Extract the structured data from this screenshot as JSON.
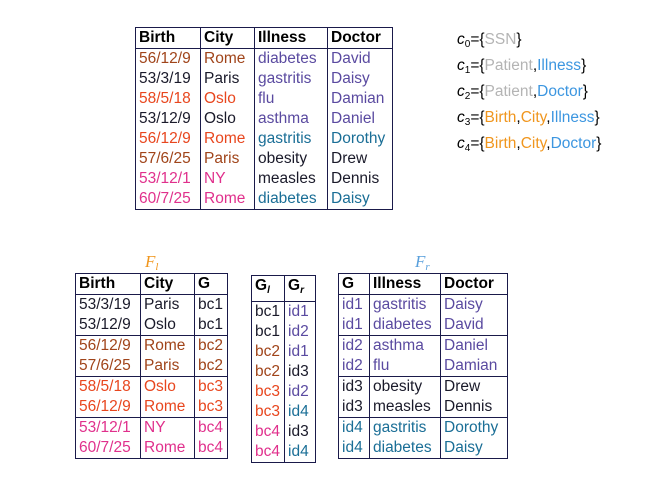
{
  "colors": {
    "brown": "#a0441a",
    "dark": "#1a1a2a",
    "red": "#e8461e",
    "pink": "#e0308c",
    "purple": "#5a4aa0",
    "teal": "#1a6e96",
    "orange": "#f0961e",
    "blue": "#3c96e0",
    "gray": "#b4b4b4",
    "fl": "#f0961e",
    "fr": "#5aa0dc"
  },
  "main_table": {
    "headers": [
      "Birth",
      "City",
      "Illness",
      "Doctor"
    ],
    "rows": [
      {
        "birth": "56/12/9",
        "city": "Rome",
        "illness": "diabetes",
        "doctor": "David",
        "c1": "brown",
        "c2": "purple"
      },
      {
        "birth": "53/3/19",
        "city": "Paris",
        "illness": "gastritis",
        "doctor": "Daisy",
        "c1": "dark",
        "c2": "purple"
      },
      {
        "birth": "58/5/18",
        "city": "Oslo",
        "illness": "flu",
        "doctor": "Damian",
        "c1": "red",
        "c2": "purple"
      },
      {
        "birth": "53/12/9",
        "city": "Oslo",
        "illness": "asthma",
        "doctor": "Daniel",
        "c1": "dark",
        "c2": "purple"
      },
      {
        "birth": "56/12/9",
        "city": "Rome",
        "illness": "gastritis",
        "doctor": "Dorothy",
        "c1": "red",
        "c2": "teal"
      },
      {
        "birth": "57/6/25",
        "city": "Paris",
        "illness": "obesity",
        "doctor": "Drew",
        "c1": "brown",
        "c2": "dark"
      },
      {
        "birth": "53/12/1",
        "city": "NY",
        "illness": "measles",
        "doctor": "Dennis",
        "c1": "pink",
        "c2": "dark"
      },
      {
        "birth": "60/7/25",
        "city": "Rome",
        "illness": "diabetes",
        "doctor": "Daisy",
        "c1": "pink",
        "c2": "teal"
      }
    ]
  },
  "constraints": [
    {
      "var": "c",
      "sub": "0",
      "items": [
        {
          "text": "SSN",
          "color": "gray"
        }
      ]
    },
    {
      "var": "c",
      "sub": "1",
      "items": [
        {
          "text": "Patient",
          "color": "gray"
        },
        {
          "text": "Illness",
          "color": "blue"
        }
      ]
    },
    {
      "var": "c",
      "sub": "2",
      "items": [
        {
          "text": "Patient",
          "color": "gray"
        },
        {
          "text": "Doctor",
          "color": "blue"
        }
      ]
    },
    {
      "var": "c",
      "sub": "3",
      "items": [
        {
          "text": "Birth",
          "color": "orange"
        },
        {
          "text": "City",
          "color": "orange"
        },
        {
          "text": "Illness",
          "color": "blue"
        }
      ]
    },
    {
      "var": "c",
      "sub": "4",
      "items": [
        {
          "text": "Birth",
          "color": "orange"
        },
        {
          "text": "City",
          "color": "orange"
        },
        {
          "text": "Doctor",
          "color": "blue"
        }
      ]
    }
  ],
  "fl": {
    "title_main": "F",
    "title_sub": "l",
    "headers": [
      "Birth",
      "City",
      "G"
    ],
    "rows": [
      {
        "birth": "53/3/19",
        "city": "Paris",
        "g": "bc1",
        "color": "dark",
        "grp": false
      },
      {
        "birth": "53/12/9",
        "city": "Oslo",
        "g": "bc1",
        "color": "dark",
        "grp": false
      },
      {
        "birth": "56/12/9",
        "city": "Rome",
        "g": "bc2",
        "color": "brown",
        "grp": true
      },
      {
        "birth": "57/6/25",
        "city": "Paris",
        "g": "bc2",
        "color": "brown",
        "grp": false
      },
      {
        "birth": "58/5/18",
        "city": "Oslo",
        "g": "bc3",
        "color": "red",
        "grp": true
      },
      {
        "birth": "56/12/9",
        "city": "Rome",
        "g": "bc3",
        "color": "red",
        "grp": false
      },
      {
        "birth": "53/12/1",
        "city": "NY",
        "g": "bc4",
        "color": "pink",
        "grp": true
      },
      {
        "birth": "60/7/25",
        "city": "Rome",
        "g": "bc4",
        "color": "pink",
        "grp": false
      }
    ]
  },
  "g": {
    "headers": [
      {
        "main": "G",
        "sub": "l"
      },
      {
        "main": "G",
        "sub": "r"
      }
    ],
    "rows": [
      {
        "gl": "bc1",
        "gr": "id1",
        "c1": "dark",
        "c2": "purple"
      },
      {
        "gl": "bc1",
        "gr": "id2",
        "c1": "dark",
        "c2": "purple"
      },
      {
        "gl": "bc2",
        "gr": "id1",
        "c1": "brown",
        "c2": "purple"
      },
      {
        "gl": "bc2",
        "gr": "id3",
        "c1": "brown",
        "c2": "dark"
      },
      {
        "gl": "bc3",
        "gr": "id2",
        "c1": "red",
        "c2": "purple"
      },
      {
        "gl": "bc3",
        "gr": "id4",
        "c1": "red",
        "c2": "teal"
      },
      {
        "gl": "bc4",
        "gr": "id3",
        "c1": "pink",
        "c2": "dark"
      },
      {
        "gl": "bc4",
        "gr": "id4",
        "c1": "pink",
        "c2": "teal"
      }
    ]
  },
  "fr": {
    "title_main": "F",
    "title_sub": "r",
    "headers": [
      "G",
      "Illness",
      "Doctor"
    ],
    "rows": [
      {
        "g": "id1",
        "illness": "gastritis",
        "doctor": "Daisy",
        "color": "purple",
        "grp": false
      },
      {
        "g": "id1",
        "illness": "diabetes",
        "doctor": "David",
        "color": "purple",
        "grp": false
      },
      {
        "g": "id2",
        "illness": "asthma",
        "doctor": "Daniel",
        "color": "purple",
        "grp": true
      },
      {
        "g": "id2",
        "illness": "flu",
        "doctor": "Damian",
        "color": "purple",
        "grp": false
      },
      {
        "g": "id3",
        "illness": "obesity",
        "doctor": "Drew",
        "color": "dark",
        "grp": true
      },
      {
        "g": "id3",
        "illness": "measles",
        "doctor": "Dennis",
        "color": "dark",
        "grp": false
      },
      {
        "g": "id4",
        "illness": "gastritis",
        "doctor": "Dorothy",
        "color": "teal",
        "grp": true
      },
      {
        "g": "id4",
        "illness": "diabetes",
        "doctor": "Daisy",
        "color": "teal",
        "grp": false
      }
    ]
  }
}
